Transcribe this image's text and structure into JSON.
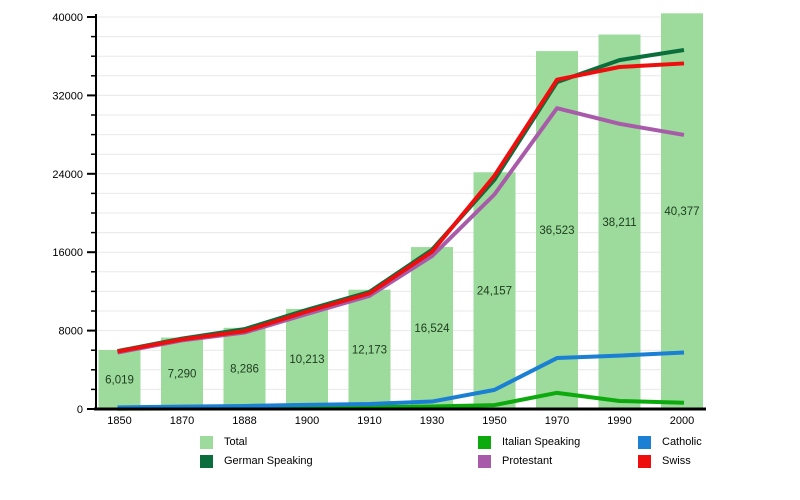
{
  "chart_data": {
    "type": "bar",
    "title": "",
    "xlabel": "",
    "ylabel": "",
    "categories": [
      "1850",
      "1870",
      "1888",
      "1900",
      "1910",
      "1930",
      "1950",
      "1970",
      "1990",
      "2000"
    ],
    "ylim": [
      0,
      40000
    ],
    "y_major_ticks": [
      0,
      8000,
      16000,
      24000,
      32000,
      40000
    ],
    "y_minor_step": 2000,
    "grid": true,
    "legend_position": "bottom",
    "bar_series": {
      "name": "Total",
      "color": "#9CDB9C",
      "values": [
        6019,
        7290,
        8286,
        10213,
        12173,
        16524,
        24157,
        36523,
        38211,
        40377
      ],
      "labels": [
        "6,019",
        "7,290",
        "8,286",
        "10,213",
        "12,173",
        "16,524",
        "24,157",
        "36,523",
        "38,211",
        "40,377"
      ]
    },
    "line_series": [
      {
        "name": "Protestant",
        "color": "#A85BA8",
        "values": [
          5800,
          7000,
          7800,
          9700,
          11550,
          15600,
          21900,
          30700,
          29100,
          28000
        ]
      },
      {
        "name": "Italian Speaking",
        "color": "#0DAA0D",
        "values": [
          30,
          50,
          80,
          130,
          190,
          260,
          400,
          1650,
          820,
          640
        ]
      },
      {
        "name": "Catholic",
        "color": "#1B7FD4",
        "values": [
          170,
          240,
          310,
          420,
          510,
          760,
          1950,
          5200,
          5450,
          5750
        ]
      },
      {
        "name": "German Speaking",
        "color": "#0B6E3C",
        "values": [
          5950,
          7180,
          8150,
          10120,
          11950,
          16250,
          23400,
          33350,
          35600,
          36600
        ]
      },
      {
        "name": "Swiss",
        "color": "#EE0E0E",
        "values": [
          5900,
          7100,
          7950,
          9950,
          11800,
          16050,
          23800,
          33600,
          34900,
          35250
        ]
      }
    ]
  },
  "legend": {
    "rows": [
      [
        {
          "label": "Total",
          "color": "#9CDB9C"
        },
        {
          "label": "Italian Speaking",
          "color": "#0DAA0D"
        },
        {
          "label": "Catholic",
          "color": "#1B7FD4"
        }
      ],
      [
        {
          "label": "German Speaking",
          "color": "#0B6E3C"
        },
        {
          "label": "Protestant",
          "color": "#A85BA8"
        },
        {
          "label": "Swiss",
          "color": "#EE0E0E"
        }
      ]
    ]
  },
  "colors": {
    "grid": "#E8E8E8",
    "axis": "#000000",
    "bar_label_text": "#1E3A1E",
    "tick_label_text": "#000000"
  }
}
